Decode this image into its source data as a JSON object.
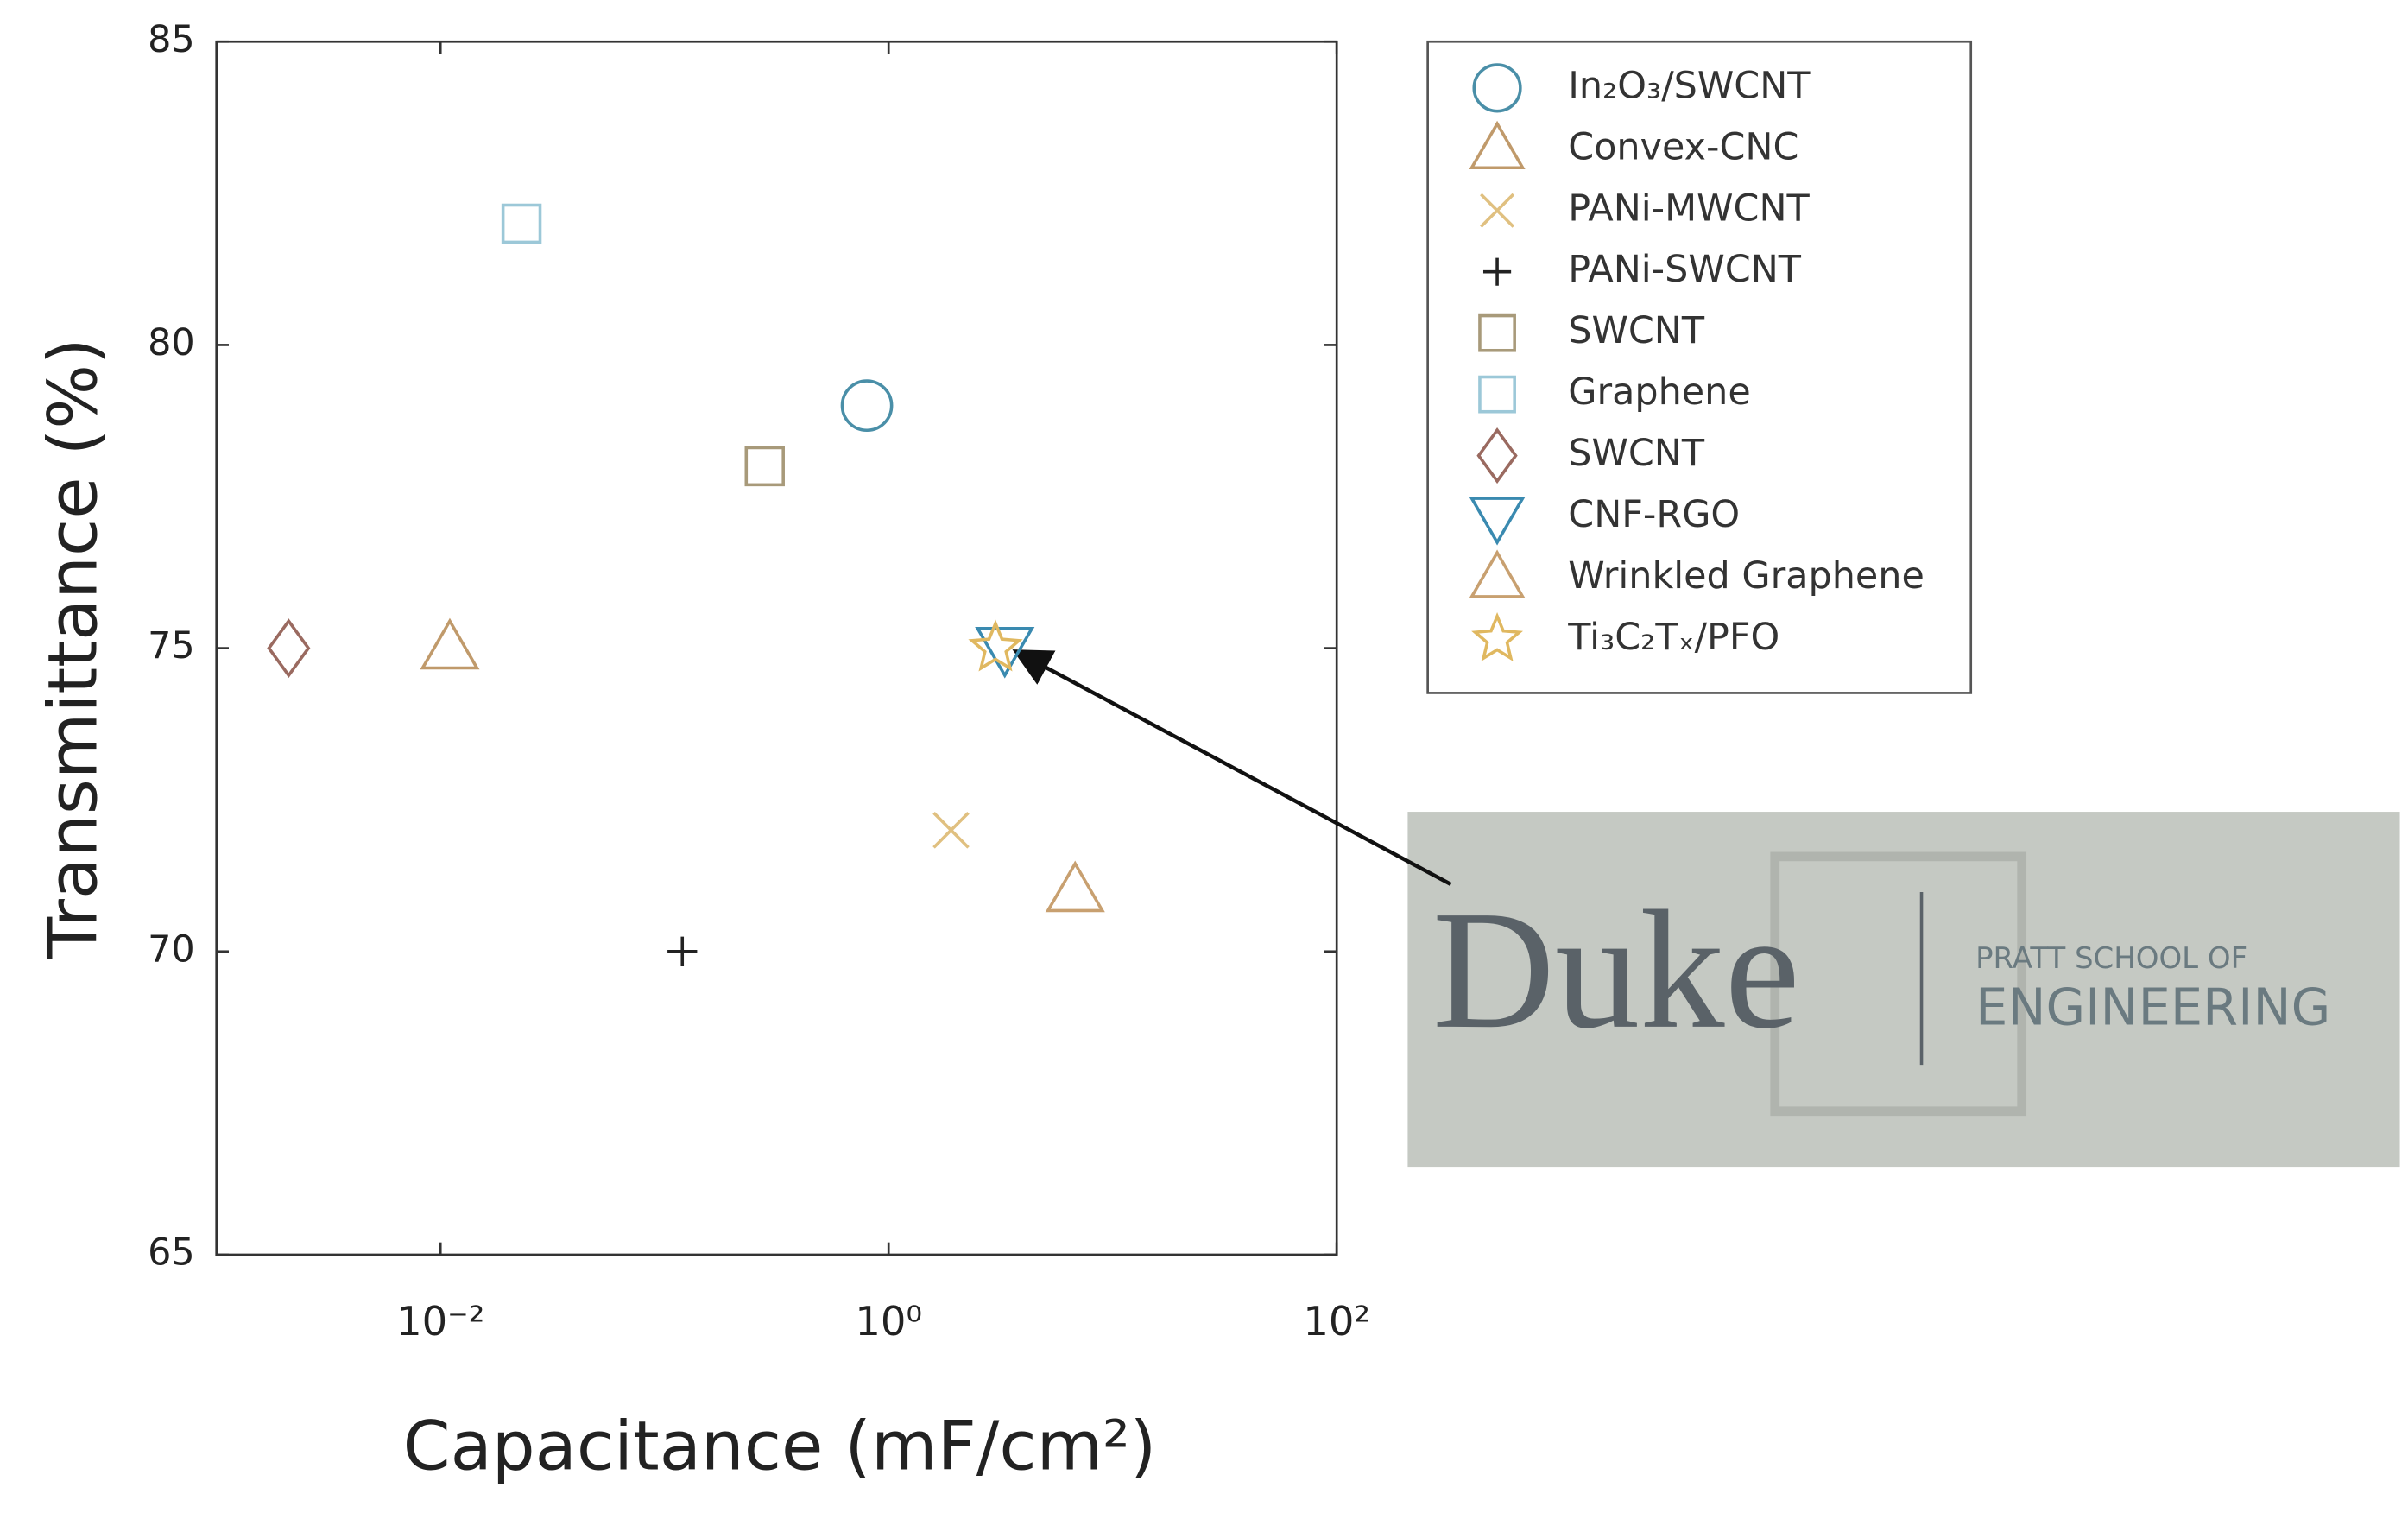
{
  "chart_data": {
    "type": "scatter",
    "x_label": "Capacitance (mF/cm²)",
    "y_label": "Transmittance (%)",
    "xscale": "log",
    "xlim": [
      0.001,
      100
    ],
    "xticks": [
      {
        "value": 0.01,
        "label": "10⁻²"
      },
      {
        "value": 1,
        "label": "10⁰"
      },
      {
        "value": 100,
        "label": "10²"
      }
    ],
    "ylim": [
      65,
      85
    ],
    "yticks": [
      65,
      70,
      75,
      80,
      85
    ],
    "grid": false,
    "legend": "outside right",
    "series": [
      {
        "name": "In₂O₃/SWCNT",
        "color": "#4a8fa8",
        "marker": "circle",
        "x": [
          0.8
        ],
        "values": [
          79
        ]
      },
      {
        "name": "Convex-CNC",
        "color": "#c09a6b",
        "marker": "triangle-up",
        "x": [
          0.011
        ],
        "values": [
          75
        ]
      },
      {
        "name": "PANi-MWCNT",
        "color": "#e0c080",
        "marker": "x",
        "x": [
          1.9
        ],
        "values": [
          72
        ]
      },
      {
        "name": "PANi-SWCNT",
        "color": "#222222",
        "marker": "plus",
        "x": [
          0.12
        ],
        "values": [
          70
        ]
      },
      {
        "name": "SWCNT",
        "color": "#a89a7a",
        "marker": "square",
        "x": [
          0.28
        ],
        "values": [
          78
        ]
      },
      {
        "name": "Graphene",
        "color": "#9cc8d8",
        "marker": "square",
        "x": [
          0.023
        ],
        "values": [
          82
        ]
      },
      {
        "name": "SWCNT",
        "color": "#9a6a60",
        "marker": "diamond",
        "x": [
          0.0021
        ],
        "values": [
          75
        ]
      },
      {
        "name": "CNF-RGO",
        "color": "#3a8ab0",
        "marker": "triangle-down",
        "x": [
          3.3
        ],
        "values": [
          75
        ]
      },
      {
        "name": "Wrinkled Graphene",
        "color": "#c8a070",
        "marker": "triangle-up",
        "x": [
          6.8
        ],
        "values": [
          71
        ]
      },
      {
        "name": "Ti₃C₂Tₓ/PFO",
        "color": "#e0b860",
        "marker": "star",
        "x": [
          3.0
        ],
        "values": [
          75
        ]
      }
    ]
  },
  "logo": {
    "name": "Duke",
    "school": "PRATT SCHOOL OF",
    "division": "ENGINEERING"
  }
}
